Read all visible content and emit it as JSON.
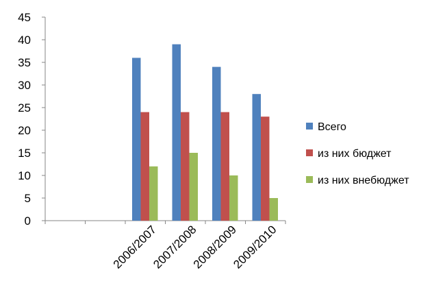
{
  "chart_data": {
    "type": "bar",
    "title": "",
    "xlabel": "",
    "ylabel": "",
    "categories": [
      "",
      "",
      "2006/2007",
      "2007/2008",
      "2008/2009",
      "2009/2010"
    ],
    "series": [
      {
        "name": "Всего",
        "values": [
          null,
          null,
          36,
          39,
          34,
          28
        ],
        "color": "#4F81BD"
      },
      {
        "name": "из них бюджет",
        "values": [
          null,
          null,
          24,
          24,
          24,
          23
        ],
        "color": "#C0504D"
      },
      {
        "name": "из них внебюджет",
        "values": [
          null,
          null,
          12,
          15,
          10,
          5
        ],
        "color": "#9BBB59"
      }
    ],
    "ylim": [
      0,
      45
    ],
    "yticks": [
      0,
      5,
      10,
      15,
      20,
      25,
      30,
      35,
      40,
      45
    ],
    "grid": false,
    "legend": "right",
    "axis_color": "#868686"
  }
}
